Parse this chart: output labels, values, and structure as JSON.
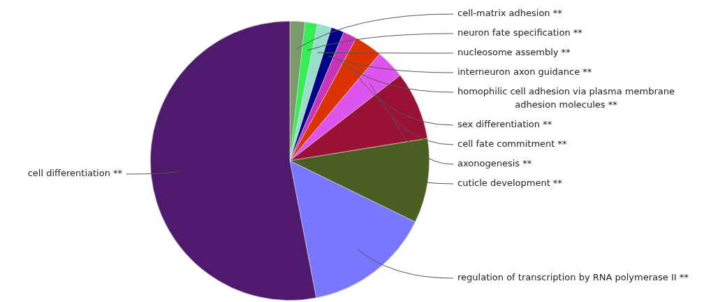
{
  "chart_data": {
    "type": "pie",
    "categories": [
      "cell-matrix adhesion **",
      "neuron fate specification **",
      "nucleosome assembly **",
      "interneuron axon guidance **",
      "homophilic cell adhesion via plasma membrane adhesion molecules **",
      "sex differentiation **",
      "cell fate commitment **",
      "axonogenesis **",
      "cuticle development **",
      "regulation of transcription by RNA polymerase II **",
      "cell differentiation **"
    ],
    "values": [
      1.75,
      1.44,
      1.64,
      1.5,
      1.58,
      3.22,
      3.39,
      7.92,
      9.78,
      14.75,
      53.03
    ],
    "colors": [
      "#7a9a6a",
      "#33ee55",
      "#99ddcc",
      "#000088",
      "#cc33bb",
      "#dd3300",
      "#dd55ee",
      "#991133",
      "#4a5e22",
      "#7777ff",
      "#4f1a6e"
    ]
  }
}
